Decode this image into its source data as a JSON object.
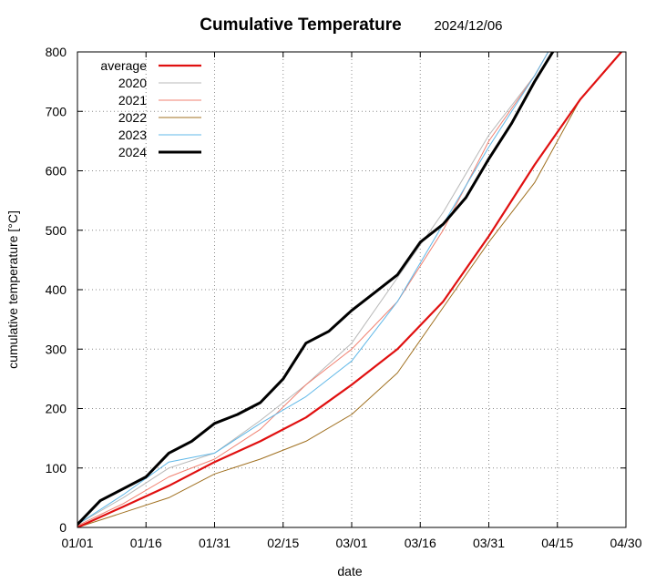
{
  "chart_data": {
    "type": "line",
    "title": "Cumulative Temperature",
    "subtitle": "2024/12/06",
    "xlabel": "date",
    "ylabel": "cumulative temperature  [°C]",
    "xlim": [
      "01/01",
      "04/30"
    ],
    "ylim": [
      0,
      800
    ],
    "x_ticks": [
      "01/01",
      "01/16",
      "01/31",
      "02/15",
      "03/01",
      "03/16",
      "03/31",
      "04/15",
      "04/30"
    ],
    "y_ticks": [
      0,
      100,
      200,
      300,
      400,
      500,
      600,
      700,
      800
    ],
    "grid": true,
    "legend_position": "top-left",
    "series": [
      {
        "name": "average",
        "color": "#e01010",
        "width": 2.2,
        "x": [
          "01/01",
          "01/11",
          "01/21",
          "01/31",
          "02/10",
          "02/20",
          "03/01",
          "03/11",
          "03/21",
          "03/31",
          "04/10",
          "04/20",
          "04/29"
        ],
        "values": [
          0,
          35,
          70,
          110,
          145,
          185,
          240,
          300,
          380,
          490,
          610,
          720,
          800
        ]
      },
      {
        "name": "2020",
        "color": "#b8b8b8",
        "width": 1,
        "x": [
          "01/01",
          "01/11",
          "01/21",
          "01/31",
          "02/10",
          "02/20",
          "03/01",
          "03/11",
          "03/21",
          "03/31",
          "04/10",
          "04/13"
        ],
        "values": [
          5,
          50,
          100,
          125,
          180,
          240,
          310,
          420,
          530,
          660,
          760,
          800
        ]
      },
      {
        "name": "2021",
        "color": "#f08070",
        "width": 1,
        "x": [
          "01/01",
          "01/11",
          "01/21",
          "01/31",
          "02/10",
          "02/20",
          "03/01",
          "03/11",
          "03/21",
          "03/31",
          "04/10",
          "04/13"
        ],
        "values": [
          3,
          40,
          85,
          115,
          165,
          240,
          300,
          380,
          500,
          650,
          760,
          800
        ]
      },
      {
        "name": "2022",
        "color": "#a07020",
        "width": 1,
        "x": [
          "01/01",
          "01/11",
          "01/21",
          "01/31",
          "02/10",
          "02/20",
          "03/01",
          "03/11",
          "03/21",
          "03/31",
          "04/10",
          "04/20",
          "04/29"
        ],
        "values": [
          0,
          25,
          50,
          90,
          115,
          145,
          190,
          260,
          370,
          480,
          580,
          720,
          800
        ]
      },
      {
        "name": "2023",
        "color": "#60b8e8",
        "width": 1,
        "x": [
          "01/01",
          "01/11",
          "01/21",
          "01/31",
          "02/10",
          "02/20",
          "03/01",
          "03/11",
          "03/21",
          "03/31",
          "04/10",
          "04/13"
        ],
        "values": [
          5,
          55,
          110,
          125,
          175,
          220,
          280,
          380,
          510,
          640,
          760,
          800
        ]
      },
      {
        "name": "2024",
        "color": "#000000",
        "width": 3,
        "x": [
          "01/01",
          "01/06",
          "01/11",
          "01/16",
          "01/21",
          "01/26",
          "01/31",
          "02/05",
          "02/10",
          "02/15",
          "02/20",
          "02/25",
          "03/01",
          "03/06",
          "03/11",
          "03/16",
          "03/21",
          "03/26",
          "03/31",
          "04/05",
          "04/10",
          "04/14"
        ],
        "values": [
          5,
          45,
          65,
          85,
          125,
          145,
          175,
          190,
          210,
          250,
          310,
          330,
          365,
          395,
          425,
          480,
          510,
          555,
          620,
          680,
          750,
          800
        ]
      }
    ]
  }
}
